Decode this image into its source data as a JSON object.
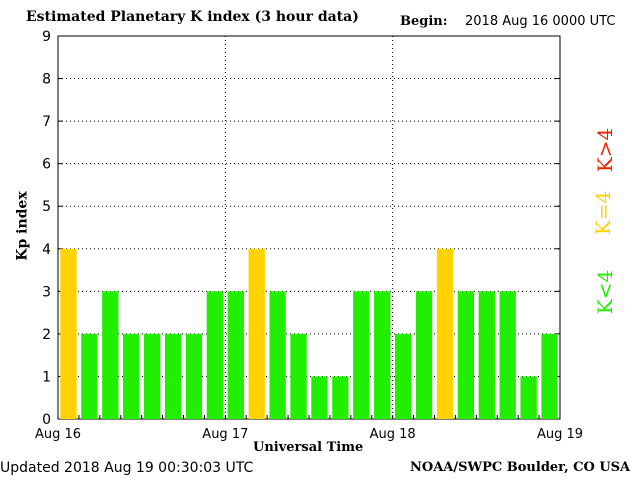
{
  "header": {
    "title": "Estimated Planetary K index (3 hour data)",
    "begin_label": "Begin:",
    "begin_value": "2018 Aug 16 0000 UTC"
  },
  "footer": {
    "updated": "Updated 2018 Aug 19 00:30:03 UTC",
    "source": "NOAA/SWPC Boulder, CO USA"
  },
  "legend": {
    "high": "K>4",
    "mid": "K=4",
    "low": "K<4"
  },
  "colors": {
    "low": "#22ee00",
    "mid": "#ffd200",
    "high": "#ee2200"
  },
  "chart_data": {
    "type": "bar",
    "xlabel": "Universal Time",
    "ylabel": "Kp index",
    "ylim": [
      0,
      9
    ],
    "yticks": [
      "0",
      "1",
      "2",
      "3",
      "4",
      "5",
      "6",
      "7",
      "8",
      "9"
    ],
    "xticks": [
      "Aug 16",
      "Aug 17",
      "Aug 18",
      "Aug 19"
    ],
    "grid": true,
    "legend_placement": "right",
    "values": [
      4,
      2,
      3,
      2,
      2,
      2,
      2,
      3,
      3,
      4,
      3,
      2,
      1,
      1,
      3,
      3,
      2,
      3,
      4,
      3,
      3,
      3,
      1,
      2
    ]
  }
}
